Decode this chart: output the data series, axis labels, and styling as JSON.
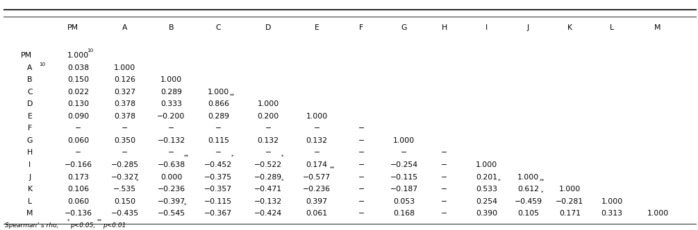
{
  "columns": [
    "PM$_{10}$",
    "A",
    "B",
    "C",
    "D",
    "E",
    "F",
    "G",
    "H",
    "I",
    "J",
    "K",
    "L",
    "M"
  ],
  "row_labels": [
    "PM$_{10}$",
    "A",
    "B",
    "C",
    "D",
    "E",
    "F",
    "G",
    "H",
    "I",
    "J",
    "K",
    "L",
    "M"
  ],
  "cell_data": [
    [
      "1.000",
      "",
      "",
      "",
      "",
      "",
      "",
      "",
      "",
      "",
      "",
      "",
      "",
      ""
    ],
    [
      "0.038",
      "1.000",
      "",
      "",
      "",
      "",
      "",
      "",
      "",
      "",
      "",
      "",
      "",
      ""
    ],
    [
      "0.150",
      "0.126",
      "1.000",
      "",
      "",
      "",
      "",
      "",
      "",
      "",
      "",
      "",
      "",
      ""
    ],
    [
      "0.022",
      "0.327",
      "0.289",
      "1.000",
      "",
      "",
      "",
      "",
      "",
      "",
      "",
      "",
      "",
      ""
    ],
    [
      "0.130",
      "0.378",
      "0.333",
      "0.866**",
      "1.000",
      "",
      "",
      "",
      "",
      "",
      "",
      "",
      "",
      ""
    ],
    [
      "0.090",
      "0.378",
      "−0.200",
      "0.289",
      "0.200",
      "1.000",
      "",
      "",
      "",
      "",
      "",
      "",
      "",
      ""
    ],
    [
      "−",
      "−",
      "−",
      "−",
      "−",
      "−",
      "−",
      "",
      "",
      "",
      "",
      "",
      "",
      ""
    ],
    [
      "0.060",
      "0.350",
      "−0.132",
      "0.115",
      "0.132",
      "0.132",
      "−",
      "1.000",
      "",
      "",
      "",
      "",
      "",
      ""
    ],
    [
      "−",
      "−",
      "−",
      "−",
      "−",
      "−",
      "−",
      "−",
      "−",
      "",
      "",
      "",
      "",
      ""
    ],
    [
      "−0.166",
      "−0.285",
      "−0.638**",
      "−0.452*",
      "−0.522*",
      "0.174",
      "−",
      "−0.254",
      "−",
      "1.000",
      "",
      "",
      "",
      ""
    ],
    [
      "0.173",
      "−0.327",
      "0.000",
      "−0.375",
      "−0.289",
      "−0.577**",
      "−",
      "−0.115",
      "−",
      "0.201",
      "1.000",
      "",
      "",
      ""
    ],
    [
      "0.106",
      "−.535*",
      "−0.236",
      "−0.357",
      "−0.471*",
      "−0.236",
      "−",
      "−0.187",
      "−",
      "0.533*",
      "0.612**",
      "1.000",
      "",
      ""
    ],
    [
      "0.060",
      "0.150",
      "−0.397",
      "−0.115",
      "−0.132",
      "0.397",
      "−",
      "0.053",
      "−",
      "0.254",
      "−0.459*",
      "−0.281",
      "1.000",
      ""
    ],
    [
      "−0.136",
      "−0.435",
      "−0.545*",
      "−0.367",
      "−0.424",
      "0.061",
      "−",
      "0.168",
      "−",
      "0.390",
      "0.105",
      "0.171",
      "0.313",
      "1.000"
    ]
  ],
  "footnote": "Spearman’ s rho, *p<0.05, **p<0.01"
}
